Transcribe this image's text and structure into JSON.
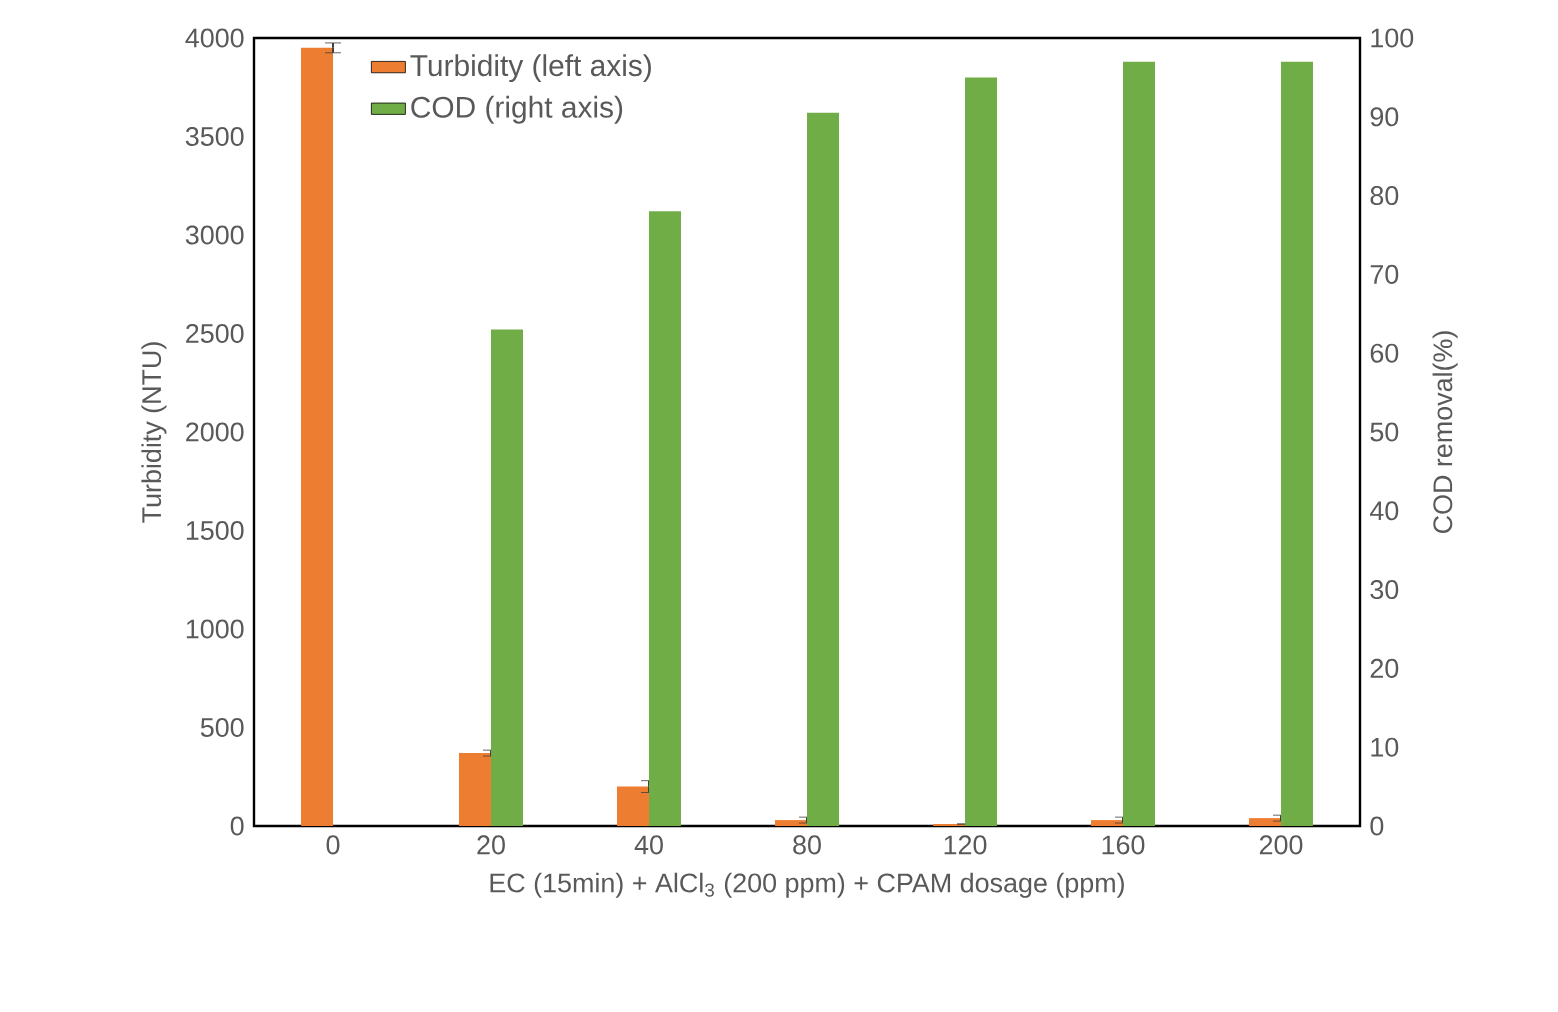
{
  "chart_data": {
    "type": "bar",
    "xlabel": "EC (15min) + AlCl$_{3}$ (200 ppm) + CPAM dosage (ppm)",
    "ylabel": "Turbidity (NTU)",
    "y2label": "COD removal(%)",
    "categories": [
      "0",
      "20",
      "40",
      "80",
      "120",
      "160",
      "200"
    ],
    "series": [
      {
        "name": "Turbidity (left axis)",
        "color": "#ed7d31",
        "values": [
          3950,
          370,
          200,
          30,
          10,
          30,
          40
        ],
        "errors": [
          25,
          15,
          30,
          15,
          null,
          15,
          15
        ]
      },
      {
        "name": "COD (right axis)",
        "color": "#70ad47",
        "axis": "y2",
        "values": [
          null,
          63,
          78,
          90.5,
          95,
          97,
          97
        ]
      }
    ],
    "ylim": [
      0,
      4000
    ],
    "yticks": [
      0,
      500,
      1000,
      1500,
      2000,
      2500,
      3000,
      3500,
      4000
    ],
    "y2lim": [
      0,
      100
    ],
    "y2ticks": [
      0,
      10,
      20,
      30,
      40,
      50,
      60,
      70,
      80,
      90,
      100
    ],
    "legend": "top left",
    "grid": false
  }
}
